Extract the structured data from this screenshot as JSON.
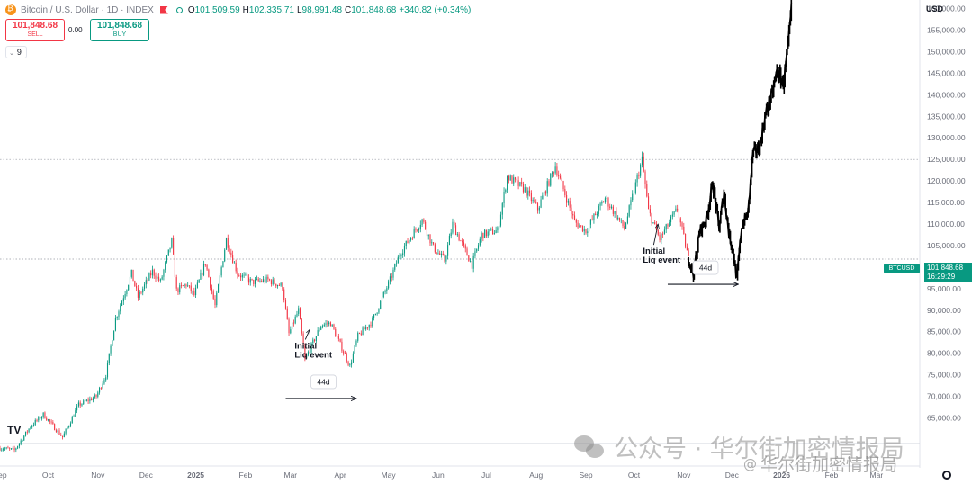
{
  "header": {
    "symbol": "Bitcoin / U.S. Dollar · 1D · INDEX",
    "open_label": "O",
    "open": "101,509.59",
    "high_label": "H",
    "high": "102,335.71",
    "low_label": "L",
    "low": "98,991.48",
    "close_label": "C",
    "close": "101,848.68",
    "change": "+340.82 (+0.34%)"
  },
  "trade": {
    "sell_price": "101,848.68",
    "sell_label": "SELL",
    "spread": "0.00",
    "buy_price": "101,848.68",
    "buy_label": "BUY"
  },
  "indicator_count": "9",
  "currency": "USD",
  "last_price": {
    "symbol": "BTCUSD",
    "price": "101,848.68",
    "countdown": "16:29:29"
  },
  "logo_text": "TV",
  "watermark": {
    "line1": "公众号 · 华尔街加密情报局",
    "line2": "华尔街加密情报局"
  },
  "colors": {
    "up": "#089981",
    "down": "#f23645",
    "projection": "#000000",
    "annotation": "#131722"
  },
  "chart_data": {
    "type": "candlestick",
    "interval": "1D",
    "y_axis": {
      "ticks": [
        "65,000.00",
        "70,000.00",
        "75,000.00",
        "80,000.00",
        "85,000.00",
        "90,000.00",
        "95,000.00",
        "100,000.00",
        "105,000.00",
        "110,000.00",
        "115,000.00",
        "120,000.00",
        "125,000.00",
        "130,000.00",
        "135,000.00",
        "140,000.00",
        "145,000.00",
        "150,000.00",
        "155,000.00",
        "160,000.00"
      ],
      "range": [
        58000,
        162000
      ]
    },
    "x_axis": {
      "labels": [
        {
          "text": "Sep",
          "date": "2024-09-01"
        },
        {
          "text": "Oct",
          "date": "2024-10-01"
        },
        {
          "text": "Nov",
          "date": "2024-11-01"
        },
        {
          "text": "Dec",
          "date": "2024-12-01"
        },
        {
          "text": "2025",
          "date": "2025-01-01"
        },
        {
          "text": "Feb",
          "date": "2025-02-01"
        },
        {
          "text": "Mar",
          "date": "2025-03-01"
        },
        {
          "text": "Apr",
          "date": "2025-04-01"
        },
        {
          "text": "May",
          "date": "2025-05-01"
        },
        {
          "text": "Jun",
          "date": "2025-06-01"
        },
        {
          "text": "Jul",
          "date": "2025-07-01"
        },
        {
          "text": "Aug",
          "date": "2025-08-01"
        },
        {
          "text": "Sep",
          "date": "2025-09-01"
        },
        {
          "text": "Oct",
          "date": "2025-10-01"
        },
        {
          "text": "Nov",
          "date": "2025-11-01"
        },
        {
          "text": "Dec",
          "date": "2025-12-01"
        },
        {
          "text": "2026",
          "date": "2026-01-01"
        },
        {
          "text": "Feb",
          "date": "2026-02-01"
        },
        {
          "text": "Mar",
          "date": "2026-03-01"
        }
      ],
      "range": [
        "2024-09-01",
        "2026-03-28"
      ]
    },
    "price_path": [
      [
        "2024-09-01",
        58000
      ],
      [
        "2024-09-10",
        57500
      ],
      [
        "2024-09-20",
        63000
      ],
      [
        "2024-09-28",
        65800
      ],
      [
        "2024-10-10",
        60500
      ],
      [
        "2024-10-20",
        68000
      ],
      [
        "2024-10-31",
        70000
      ],
      [
        "2024-11-06",
        75000
      ],
      [
        "2024-11-12",
        88000
      ],
      [
        "2024-11-22",
        98500
      ],
      [
        "2024-11-26",
        93000
      ],
      [
        "2024-12-05",
        99000
      ],
      [
        "2024-12-10",
        96500
      ],
      [
        "2024-12-17",
        106000
      ],
      [
        "2024-12-20",
        94500
      ],
      [
        "2024-12-26",
        96000
      ],
      [
        "2024-12-31",
        93500
      ],
      [
        "2025-01-07",
        101000
      ],
      [
        "2025-01-13",
        91000
      ],
      [
        "2025-01-20",
        106500
      ],
      [
        "2025-01-27",
        98500
      ],
      [
        "2025-02-05",
        96500
      ],
      [
        "2025-02-15",
        97000
      ],
      [
        "2025-02-24",
        95500
      ],
      [
        "2025-02-28",
        84500
      ],
      [
        "2025-03-06",
        90000
      ],
      [
        "2025-03-10",
        78500
      ],
      [
        "2025-03-20",
        86500
      ],
      [
        "2025-03-26",
        87000
      ],
      [
        "2025-04-01",
        82000
      ],
      [
        "2025-04-07",
        77000
      ],
      [
        "2025-04-12",
        84000
      ],
      [
        "2025-04-21",
        87500
      ],
      [
        "2025-05-02",
        97000
      ],
      [
        "2025-05-08",
        103000
      ],
      [
        "2025-05-22",
        111000
      ],
      [
        "2025-05-29",
        104500
      ],
      [
        "2025-06-05",
        101500
      ],
      [
        "2025-06-10",
        110000
      ],
      [
        "2025-06-22",
        100500
      ],
      [
        "2025-06-28",
        107500
      ],
      [
        "2025-07-08",
        108500
      ],
      [
        "2025-07-14",
        121000
      ],
      [
        "2025-07-25",
        118000
      ],
      [
        "2025-08-02",
        113500
      ],
      [
        "2025-08-13",
        123500
      ],
      [
        "2025-08-25",
        110500
      ],
      [
        "2025-09-01",
        108500
      ],
      [
        "2025-09-13",
        116000
      ],
      [
        "2025-09-25",
        109000
      ],
      [
        "2025-10-06",
        125000
      ],
      [
        "2025-10-10",
        113000
      ],
      [
        "2025-10-17",
        106500
      ],
      [
        "2025-10-28",
        113500
      ],
      [
        "2025-11-04",
        101848
      ]
    ],
    "projection_path": [
      [
        "2025-11-04",
        101848
      ],
      [
        "2025-11-07",
        98500
      ],
      [
        "2025-11-11",
        108500
      ],
      [
        "2025-11-15",
        111000
      ],
      [
        "2025-11-19",
        119500
      ],
      [
        "2025-11-23",
        109000
      ],
      [
        "2025-11-26",
        117500
      ],
      [
        "2025-11-29",
        108000
      ],
      [
        "2025-12-02",
        103000
      ],
      [
        "2025-12-04",
        97000
      ],
      [
        "2025-12-07",
        109500
      ],
      [
        "2025-12-11",
        112500
      ],
      [
        "2025-12-14",
        126500
      ],
      [
        "2025-12-18",
        127500
      ],
      [
        "2025-12-22",
        135500
      ],
      [
        "2025-12-26",
        140000
      ],
      [
        "2025-12-29",
        145500
      ],
      [
        "2026-01-02",
        142500
      ],
      [
        "2026-01-05",
        151000
      ],
      [
        "2026-01-07",
        160000
      ]
    ],
    "horizontal_lines": [
      125000,
      101848.68
    ],
    "annotations": [
      {
        "text_line1": "Initial",
        "text_line2": "Liq event",
        "date": "2025-03-08",
        "price": 81500,
        "arrow_to_date": "2025-03-13",
        "arrow_to_price": 85500
      },
      {
        "text_line1": "Initial",
        "text_line2": "Liq event",
        "date": "2025-10-11",
        "price": 103500,
        "arrow_to_date": "2025-10-16",
        "arrow_to_price": 110000
      }
    ],
    "ranges": [
      {
        "label": "44d",
        "from": "2025-02-26",
        "to": "2025-04-11",
        "price": 69500
      },
      {
        "label": "44d",
        "from": "2025-10-22",
        "to": "2025-12-05",
        "price": 96000
      }
    ]
  }
}
